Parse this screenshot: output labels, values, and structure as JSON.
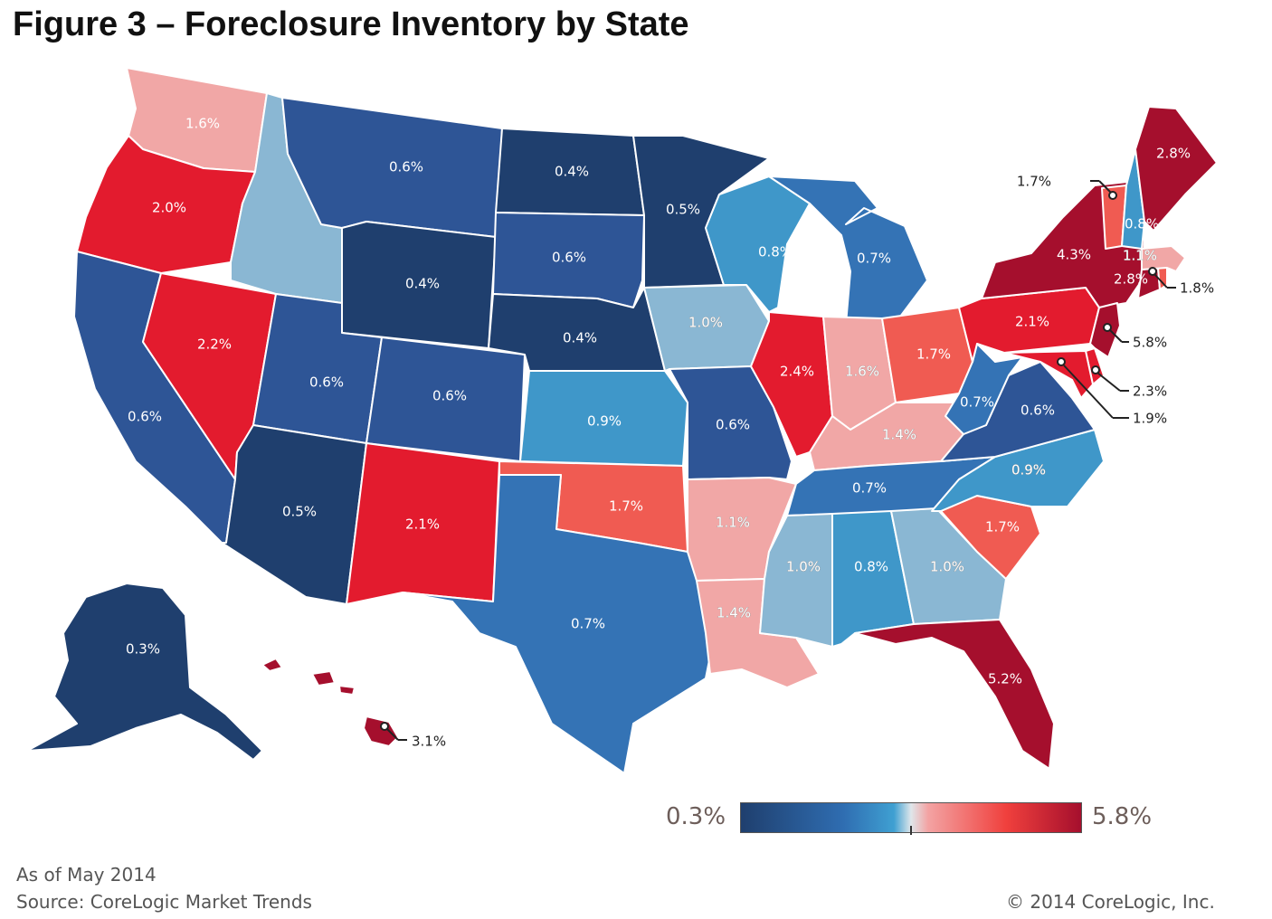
{
  "title": "Figure 3 – Foreclosure Inventory by State",
  "footer": {
    "as_of": "As of May 2014",
    "source": "Source: CoreLogic Market Trends",
    "copyright": "© 2014  CoreLogic, Inc."
  },
  "legend": {
    "min_label": "0.3%",
    "max_label": "5.8%",
    "min": 0.3,
    "max": 5.8
  },
  "colors": {
    "dark_blue": "#1f3f6e",
    "blue": "#2e5596",
    "mid_blue": "#3473b5",
    "sky": "#3f97c9",
    "light_blue": "#8ab7d3",
    "pink_light": "#f1a7a6",
    "salmon": "#f05b52",
    "red": "#e31b2e",
    "dark_red": "#a50f2d"
  },
  "states": [
    {
      "name": "WA",
      "label": "1.6%",
      "value": 1.6
    },
    {
      "name": "OR",
      "label": "2.0%",
      "value": 2.0
    },
    {
      "name": "CA",
      "label": "0.6%",
      "value": 0.6
    },
    {
      "name": "NV",
      "label": "2.2%",
      "value": 2.2
    },
    {
      "name": "ID",
      "label": "",
      "value": 1.0
    },
    {
      "name": "MT",
      "label": "0.6%",
      "value": 0.6
    },
    {
      "name": "WY",
      "label": "0.4%",
      "value": 0.4
    },
    {
      "name": "UT",
      "label": "0.6%",
      "value": 0.6
    },
    {
      "name": "AZ",
      "label": "0.5%",
      "value": 0.5
    },
    {
      "name": "CO",
      "label": "0.6%",
      "value": 0.6
    },
    {
      "name": "NM",
      "label": "2.1%",
      "value": 2.1
    },
    {
      "name": "ND",
      "label": "0.4%",
      "value": 0.4
    },
    {
      "name": "SD",
      "label": "0.6%",
      "value": 0.6
    },
    {
      "name": "NE",
      "label": "0.4%",
      "value": 0.4
    },
    {
      "name": "KS",
      "label": "0.9%",
      "value": 0.9
    },
    {
      "name": "OK",
      "label": "1.7%",
      "value": 1.7
    },
    {
      "name": "TX",
      "label": "0.7%",
      "value": 0.7
    },
    {
      "name": "MN",
      "label": "0.5%",
      "value": 0.5
    },
    {
      "name": "IA",
      "label": "1.0%",
      "value": 1.0
    },
    {
      "name": "MO",
      "label": "0.6%",
      "value": 0.6
    },
    {
      "name": "AR",
      "label": "1.1%",
      "value": 1.1
    },
    {
      "name": "LA",
      "label": "1.4%",
      "value": 1.4
    },
    {
      "name": "WI",
      "label": "0.8%",
      "value": 0.8
    },
    {
      "name": "IL",
      "label": "2.4%",
      "value": 2.4
    },
    {
      "name": "MI",
      "label": "0.7%",
      "value": 0.7
    },
    {
      "name": "IN",
      "label": "1.6%",
      "value": 1.6
    },
    {
      "name": "OH",
      "label": "1.7%",
      "value": 1.7
    },
    {
      "name": "KY",
      "label": "1.4%",
      "value": 1.4
    },
    {
      "name": "TN",
      "label": "0.7%",
      "value": 0.7
    },
    {
      "name": "MS",
      "label": "1.0%",
      "value": 1.0
    },
    {
      "name": "AL",
      "label": "0.8%",
      "value": 0.8
    },
    {
      "name": "GA",
      "label": "1.0%",
      "value": 1.0
    },
    {
      "name": "FL",
      "label": "5.2%",
      "value": 5.2
    },
    {
      "name": "SC",
      "label": "1.7%",
      "value": 1.7
    },
    {
      "name": "NC",
      "label": "0.9%",
      "value": 0.9
    },
    {
      "name": "VA",
      "label": "0.6%",
      "value": 0.6
    },
    {
      "name": "WV",
      "label": "0.7%",
      "value": 0.7
    },
    {
      "name": "PA",
      "label": "2.1%",
      "value": 2.1
    },
    {
      "name": "NY",
      "label": "4.3%",
      "value": 4.3
    },
    {
      "name": "NJ",
      "label": "5.8%",
      "value": 5.8
    },
    {
      "name": "DE",
      "label": "2.3%",
      "value": 2.3
    },
    {
      "name": "MD",
      "label": "1.9%",
      "value": 1.9
    },
    {
      "name": "CT",
      "label": "2.8%",
      "value": 2.8
    },
    {
      "name": "RI",
      "label": "1.8%",
      "value": 1.8
    },
    {
      "name": "MA",
      "label": "1.1%",
      "value": 1.1
    },
    {
      "name": "VT",
      "label": "1.7%",
      "value": 1.7
    },
    {
      "name": "NH",
      "label": "0.8%",
      "value": 0.8
    },
    {
      "name": "ME",
      "label": "2.8%",
      "value": 2.8
    },
    {
      "name": "AK",
      "label": "0.3%",
      "value": 0.3
    },
    {
      "name": "HI",
      "label": "3.1%",
      "value": 3.1
    }
  ]
}
